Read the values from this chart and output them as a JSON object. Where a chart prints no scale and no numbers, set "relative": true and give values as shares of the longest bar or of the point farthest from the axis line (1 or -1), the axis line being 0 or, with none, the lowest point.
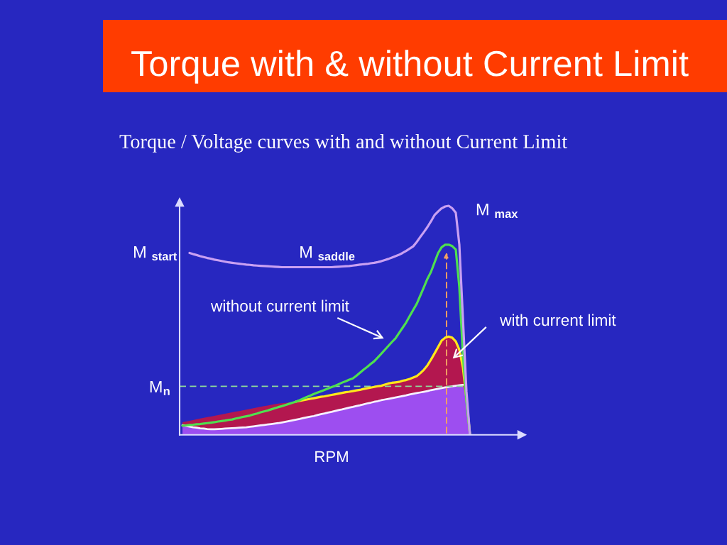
{
  "chart_data": {
    "type": "line",
    "relative": true,
    "title": "Torque with & without Current Limit",
    "subtitle": "Torque / Voltage curves with and without Current Limit",
    "xlabel": "RPM",
    "categories": [
      null,
      null,
      null,
      null,
      null,
      null,
      null,
      null,
      null,
      null,
      null,
      null,
      null,
      null,
      null,
      null,
      null,
      null,
      null,
      null,
      null,
      null,
      null,
      null,
      null,
      null,
      null,
      null,
      null,
      null,
      null,
      null,
      null,
      null,
      null,
      null,
      null,
      null,
      null,
      null,
      null,
      null,
      null,
      null,
      null,
      null,
      null,
      null,
      null,
      null,
      null,
      null,
      null,
      null,
      null,
      null,
      null,
      null,
      null,
      null,
      null,
      null,
      null,
      null,
      null,
      null,
      null,
      null,
      null,
      null,
      null,
      null,
      null,
      null,
      null,
      null,
      null,
      null,
      null,
      null,
      null,
      null
    ],
    "series": [
      {
        "color": "#ffe81a",
        "values": [
          null,
          null,
          null,
          null,
          null,
          null,
          null,
          null,
          null,
          null,
          null,
          null,
          null,
          null,
          null,
          null,
          null,
          null,
          null,
          null,
          null,
          null,
          null,
          null,
          null,
          null,
          null,
          null,
          null,
          null,
          null,
          null,
          0.145,
          0.148,
          0.151,
          0.154,
          0.157,
          0.16,
          0.163,
          0.166,
          0.168,
          0.171,
          0.174,
          0.177,
          0.18,
          0.183,
          0.186,
          0.188,
          0.191,
          0.194,
          0.196,
          0.2,
          0.203,
          0.206,
          0.209,
          0.212,
          0.214,
          0.219,
          0.224,
          0.227,
          0.229,
          0.231,
          0.236,
          0.239,
          0.244,
          0.25,
          0.256,
          0.269,
          0.284,
          0.303,
          0.328,
          0.355,
          0.383,
          0.411,
          0.424,
          0.429,
          0.424,
          0.408,
          0.371,
          0.294,
          0.157,
          0
        ]
      },
      {
        "color": "#4fe04f",
        "values": [
          0.04,
          0.041,
          0.043,
          0.044,
          0.046,
          0.047,
          0.049,
          0.051,
          0.053,
          0.055,
          0.058,
          0.06,
          0.062,
          0.065,
          0.067,
          0.071,
          0.074,
          0.078,
          0.081,
          0.084,
          0.089,
          0.093,
          0.098,
          0.102,
          0.106,
          0.111,
          0.116,
          0.121,
          0.125,
          0.13,
          0.135,
          0.14,
          0.145,
          0.151,
          0.158,
          0.165,
          0.171,
          0.178,
          0.184,
          0.19,
          0.196,
          0.202,
          0.208,
          0.214,
          0.221,
          0.228,
          0.234,
          0.241,
          0.246,
          0.258,
          0.271,
          0.284,
          0.296,
          0.309,
          0.321,
          0.337,
          0.354,
          0.371,
          0.388,
          0.405,
          0.421,
          0.444,
          0.467,
          0.49,
          0.518,
          0.545,
          0.572,
          0.608,
          0.644,
          0.681,
          0.711,
          0.752,
          0.793,
          0.819,
          0.83,
          0.83,
          0.824,
          0.809,
          0.644,
          0.349,
          0.148,
          0
        ]
      },
      {
        "color": "#c9a0f2",
        "values": [
          null,
          null,
          0.794,
          0.789,
          0.785,
          0.78,
          0.776,
          0.772,
          0.769,
          0.765,
          0.762,
          0.759,
          0.756,
          0.753,
          0.751,
          0.749,
          0.747,
          0.745,
          0.743,
          0.742,
          0.74,
          0.739,
          0.738,
          0.737,
          0.736,
          0.735,
          0.734,
          0.733,
          0.732,
          0.732,
          0.732,
          0.732,
          0.732,
          0.732,
          0.732,
          0.732,
          0.732,
          0.732,
          0.732,
          0.732,
          0.732,
          0.732,
          0.732,
          0.733,
          0.734,
          0.735,
          0.736,
          0.737,
          0.739,
          0.741,
          0.743,
          0.745,
          0.746,
          0.749,
          0.751,
          0.754,
          0.758,
          0.763,
          0.768,
          0.774,
          0.78,
          0.786,
          0.794,
          0.803,
          0.813,
          0.823,
          0.842,
          0.864,
          0.885,
          0.907,
          0.932,
          0.959,
          0.975,
          0.989,
          0.997,
          1.0,
          0.989,
          0.97,
          0.83,
          0.51,
          0.19,
          0
        ]
      },
      {
        "type": "area",
        "color": "#b3174f",
        "values": [
          0.055,
          0.058,
          0.061,
          0.064,
          0.068,
          0.071,
          0.074,
          0.077,
          0.08,
          0.083,
          0.086,
          0.089,
          0.092,
          0.095,
          0.098,
          0.101,
          0.104,
          0.107,
          0.11,
          0.113,
          0.116,
          0.119,
          0.122,
          0.125,
          0.128,
          0.131,
          0.134,
          0.136,
          0.138,
          0.139,
          0.141,
          0.143,
          0.145,
          0.148,
          0.151,
          0.154,
          0.157,
          0.16,
          0.163,
          0.166,
          0.168,
          0.171,
          0.174,
          0.177,
          0.18,
          0.183,
          0.186,
          0.188,
          0.191,
          0.194,
          0.196,
          0.2,
          0.203,
          0.206,
          0.209,
          0.212,
          0.214,
          0.219,
          0.224,
          0.227,
          0.229,
          0.231,
          0.236,
          0.239,
          0.244,
          0.25,
          0.256,
          0.269,
          0.284,
          0.303,
          0.328,
          0.355,
          0.383,
          0.411,
          0.424,
          0.429,
          0.424,
          0.408,
          0.371,
          0.294,
          0.157,
          0
        ]
      },
      {
        "type": "area",
        "color": "#9d4ef0",
        "values": [
          0.042,
          0.039,
          0.036,
          0.033,
          0.031,
          0.028,
          0.027,
          0.025,
          0.024,
          0.024,
          0.025,
          0.026,
          0.027,
          0.028,
          0.029,
          0.03,
          0.031,
          0.032,
          0.033,
          0.035,
          0.037,
          0.039,
          0.041,
          0.043,
          0.045,
          0.047,
          0.049,
          0.051,
          0.054,
          0.057,
          0.06,
          0.063,
          0.066,
          0.069,
          0.073,
          0.076,
          0.079,
          0.082,
          0.086,
          0.09,
          0.093,
          0.097,
          0.1,
          0.104,
          0.108,
          0.111,
          0.115,
          0.119,
          0.122,
          0.126,
          0.129,
          0.133,
          0.137,
          0.14,
          0.144,
          0.147,
          0.151,
          0.154,
          0.157,
          0.16,
          0.163,
          0.166,
          0.169,
          0.172,
          0.176,
          0.179,
          0.182,
          0.185,
          0.188,
          0.191,
          0.195,
          0.198,
          0.201,
          0.204,
          0.207,
          0.209,
          0.212,
          0.214,
          0.216,
          0.218,
          0.157,
          0
        ]
      }
    ],
    "ref_lines": [
      {
        "axis": "y",
        "value": 0.212,
        "label": "M$_{n}$",
        "color": "#8fd99a",
        "line_style": "dashed"
      }
    ],
    "annotations": [
      "M $_{start}$",
      "M $_{saddle}$",
      "M $_{max}$",
      "without current limit",
      "with current limit"
    ]
  }
}
